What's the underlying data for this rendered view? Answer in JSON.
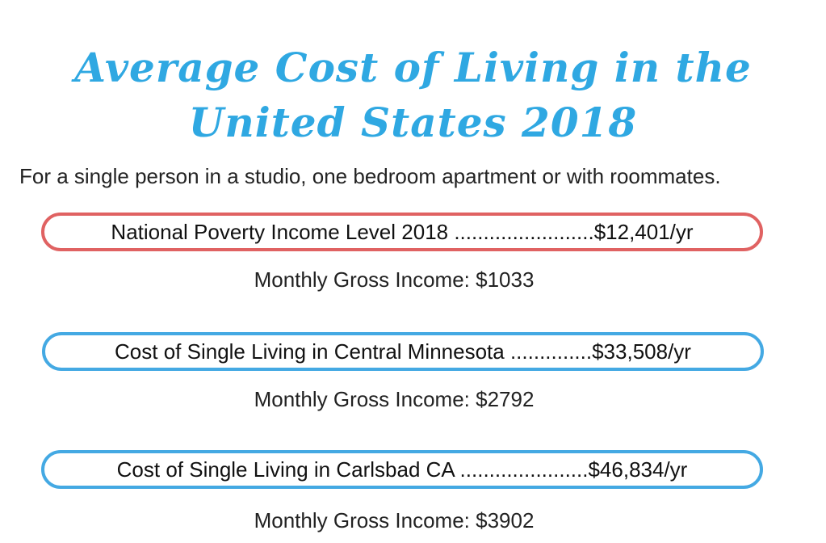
{
  "title": {
    "line1": "Average Cost of Living in the",
    "line2": "United States 2018"
  },
  "subtitle": "For a single person in a studio, one bedroom apartment or with roommates.",
  "items": [
    {
      "label": "National Poverty Income Level 2018 ........................$12,401/yr",
      "monthly": "Monthly Gross Income: $1033"
    },
    {
      "label": "Cost of Single Living in Central Minnesota ..............$33,508/yr",
      "monthly": "Monthly Gross Income: $2792"
    },
    {
      "label": "Cost of Single Living in Carlsbad CA ......................$46,834/yr",
      "monthly": "Monthly Gross Income: $3902"
    }
  ],
  "colors": {
    "title": "#2fa8e2",
    "poverty_border": "#e06262",
    "cost_border": "#44a9e3"
  }
}
